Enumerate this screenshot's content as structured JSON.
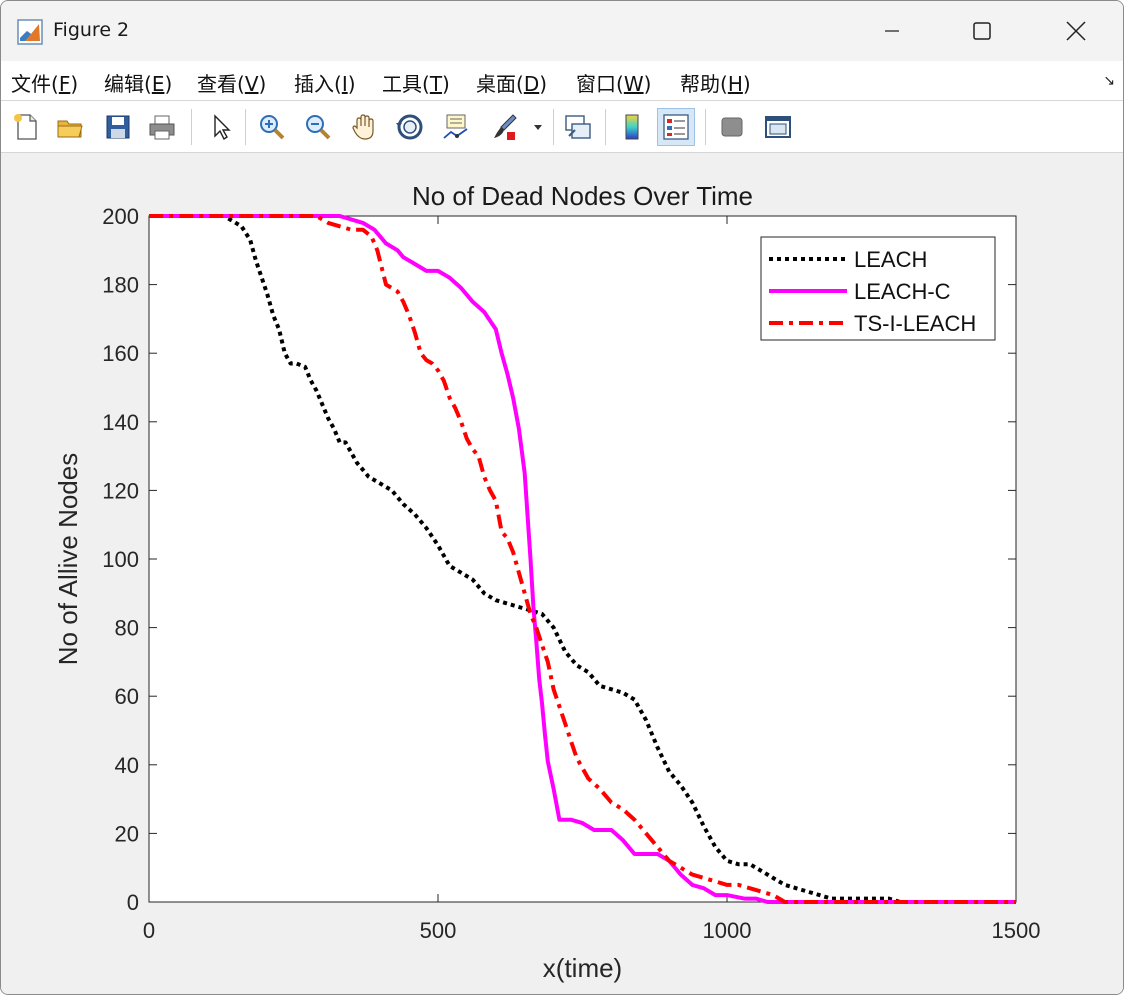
{
  "window": {
    "title": "Figure 2"
  },
  "menu": {
    "items": [
      {
        "label": "文件(",
        "key": "F",
        "tail": ")"
      },
      {
        "label": "编辑(",
        "key": "E",
        "tail": ")"
      },
      {
        "label": "查看(",
        "key": "V",
        "tail": ")"
      },
      {
        "label": "插入(",
        "key": "I",
        "tail": ")"
      },
      {
        "label": "工具(",
        "key": "T",
        "tail": ")"
      },
      {
        "label": "桌面(",
        "key": "D",
        "tail": ")"
      },
      {
        "label": "窗口(",
        "key": "W",
        "tail": ")"
      },
      {
        "label": "帮助(",
        "key": "H",
        "tail": ")"
      }
    ],
    "more_arrow": "↘"
  },
  "toolbar": {
    "tools": [
      "new-file-icon",
      "open-folder-icon",
      "save-icon",
      "print-icon",
      "select-arrow-icon",
      "zoom-in-icon",
      "zoom-out-icon",
      "pan-hand-icon",
      "rotate-3d-icon",
      "data-cursor-icon",
      "brush-icon",
      "link-plot-icon",
      "colorbar-icon",
      "legend-icon",
      "hide-tools-icon",
      "dock-figure-icon"
    ]
  },
  "colors": {
    "leach": "#000000",
    "leach_c": "#ff00ff",
    "ts_i_leach": "#ff0000"
  },
  "chart_data": {
    "type": "line",
    "title": "No of Dead Nodes Over Time",
    "xlabel": "x(time)",
    "ylabel": "No of Allive Nodes",
    "xlim": [
      0,
      1500
    ],
    "ylim": [
      0,
      200
    ],
    "xticks": [
      0,
      500,
      1000,
      1500
    ],
    "yticks": [
      0,
      20,
      40,
      60,
      80,
      100,
      120,
      140,
      160,
      180,
      200
    ],
    "grid": false,
    "legend_position": "top-right",
    "series": [
      {
        "name": "LEACH",
        "style": "dotted",
        "color": "#000000",
        "x": [
          0,
          130,
          160,
          175,
          185,
          195,
          205,
          215,
          225,
          235,
          245,
          255,
          270,
          280,
          290,
          300,
          310,
          320,
          330,
          340,
          350,
          360,
          370,
          380,
          400,
          420,
          440,
          460,
          480,
          500,
          520,
          540,
          560,
          580,
          600,
          620,
          640,
          660,
          680,
          700,
          720,
          740,
          760,
          780,
          800,
          820,
          840,
          860,
          880,
          900,
          920,
          940,
          960,
          980,
          1000,
          1020,
          1040,
          1060,
          1080,
          1100,
          1120,
          1140,
          1160,
          1180,
          1200,
          1250,
          1280,
          1300,
          1500
        ],
        "y": [
          200,
          200,
          197,
          193,
          187,
          182,
          177,
          171,
          167,
          160,
          157,
          157,
          156,
          152,
          149,
          145,
          141,
          138,
          134,
          134,
          131,
          128,
          126,
          124,
          122,
          120,
          116,
          113,
          109,
          104,
          98,
          96,
          94,
          90,
          88,
          87,
          86,
          85,
          84,
          80,
          73,
          69,
          67,
          63,
          62,
          61,
          59,
          53,
          45,
          38,
          34,
          29,
          22,
          16,
          12,
          11,
          11,
          9,
          7,
          5,
          4,
          3,
          2,
          1,
          1,
          1,
          1,
          0,
          0
        ]
      },
      {
        "name": "LEACH-C",
        "style": "solid",
        "color": "#ff00ff",
        "x": [
          0,
          330,
          350,
          370,
          390,
          410,
          430,
          440,
          460,
          480,
          500,
          520,
          540,
          560,
          580,
          600,
          610,
          620,
          630,
          640,
          650,
          660,
          665,
          670,
          675,
          680,
          685,
          690,
          700,
          710,
          720,
          730,
          750,
          770,
          800,
          820,
          840,
          880,
          900,
          920,
          940,
          960,
          980,
          1000,
          1030,
          1050,
          1070,
          1100,
          1500
        ],
        "y": [
          200,
          200,
          199,
          198,
          196,
          192,
          190,
          188,
          186,
          184,
          184,
          182,
          179,
          175,
          172,
          167,
          160,
          154,
          147,
          138,
          125,
          100,
          86,
          76,
          65,
          58,
          49,
          41,
          33,
          24,
          24,
          24,
          23,
          21,
          21,
          18,
          14,
          14,
          12,
          8,
          5,
          4,
          2,
          2,
          1,
          1,
          0,
          0,
          0
        ]
      },
      {
        "name": "TS-I-LEACH",
        "style": "dashdot",
        "color": "#ff0000",
        "x": [
          0,
          290,
          310,
          330,
          350,
          370,
          385,
          395,
          410,
          420,
          430,
          440,
          450,
          460,
          470,
          480,
          490,
          500,
          510,
          520,
          530,
          540,
          550,
          560,
          570,
          580,
          590,
          600,
          610,
          620,
          630,
          640,
          650,
          660,
          670,
          680,
          690,
          700,
          710,
          720,
          730,
          740,
          750,
          760,
          780,
          800,
          820,
          840,
          860,
          880,
          900,
          920,
          940,
          960,
          980,
          1000,
          1020,
          1040,
          1060,
          1080,
          1100,
          1500
        ],
        "y": [
          200,
          200,
          198,
          197,
          196,
          196,
          194,
          190,
          180,
          179,
          178,
          175,
          171,
          166,
          160,
          158,
          157,
          155,
          152,
          147,
          144,
          140,
          135,
          132,
          130,
          124,
          120,
          117,
          108,
          106,
          102,
          96,
          90,
          84,
          80,
          75,
          70,
          62,
          57,
          52,
          47,
          42,
          39,
          36,
          33,
          29,
          27,
          24,
          20,
          16,
          12,
          10,
          8,
          7,
          6,
          5,
          5,
          4,
          3,
          2,
          0,
          0
        ]
      }
    ]
  }
}
